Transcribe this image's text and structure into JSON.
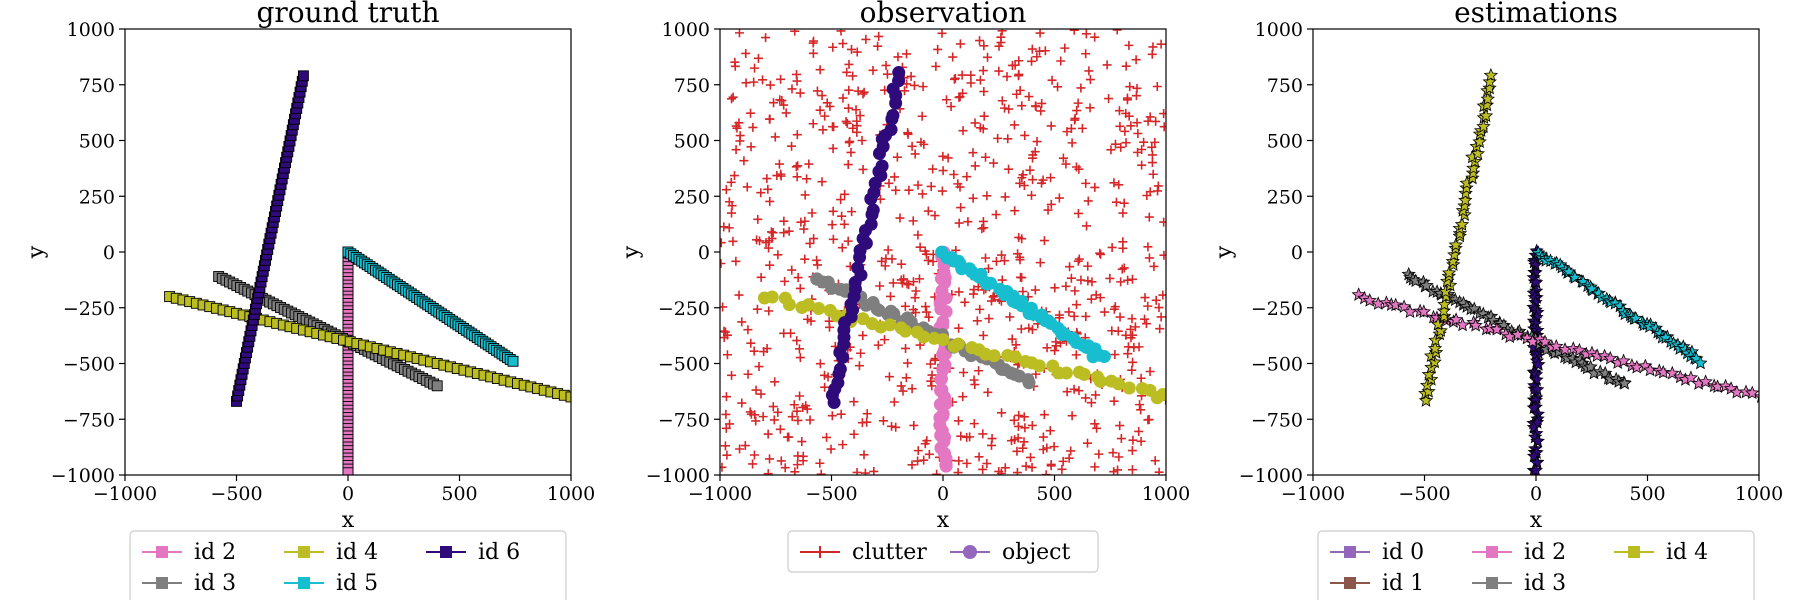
{
  "chart_data": [
    {
      "type": "line",
      "title": "ground truth",
      "xlabel": "x",
      "ylabel": "y",
      "xlim": [
        -1000,
        1000
      ],
      "ylim": [
        -1000,
        1000
      ],
      "xticks": [
        "−1000",
        "−500",
        "0",
        "500",
        "1000"
      ],
      "yticks": [
        "−1000",
        "−750",
        "−500",
        "−250",
        "0",
        "250",
        "500",
        "750",
        "1000"
      ],
      "legend": {
        "placement": "bottom",
        "columns": 3,
        "entries": [
          {
            "label": "id 2",
            "color": "#e377c2",
            "marker": "square"
          },
          {
            "label": "id 3",
            "color": "#7f7f7f",
            "marker": "square"
          },
          {
            "label": "id 4",
            "color": "#bcbd22",
            "marker": "square"
          },
          {
            "label": "id 5",
            "color": "#17becf",
            "marker": "square"
          },
          {
            "label": "id 6",
            "color": "#2e0a7a",
            "marker": "square"
          }
        ]
      },
      "series": [
        {
          "name": "id 2",
          "color": "#e377c2",
          "marker": "square",
          "x": [
            0,
            0
          ],
          "y": [
            0,
            -990
          ]
        },
        {
          "name": "id 3",
          "color": "#7f7f7f",
          "marker": "square",
          "x": [
            -580,
            400
          ],
          "y": [
            -110,
            -600
          ]
        },
        {
          "name": "id 4",
          "color": "#bcbd22",
          "marker": "square",
          "x": [
            -800,
            1000
          ],
          "y": [
            -200,
            -650
          ]
        },
        {
          "name": "id 5",
          "color": "#17becf",
          "marker": "square",
          "x": [
            0,
            740
          ],
          "y": [
            0,
            -490
          ]
        },
        {
          "name": "id 6",
          "color": "#2e0a7a",
          "marker": "square",
          "x": [
            -500,
            -200
          ],
          "y": [
            -670,
            790
          ]
        }
      ]
    },
    {
      "type": "scatter",
      "title": "observation",
      "xlabel": "x",
      "ylabel": "y",
      "xlim": [
        -1000,
        1000
      ],
      "ylim": [
        -1000,
        1000
      ],
      "xticks": [
        "−1000",
        "−500",
        "0",
        "500",
        "1000"
      ],
      "yticks": [
        "−1000",
        "−750",
        "−500",
        "−250",
        "0",
        "250",
        "500",
        "750",
        "1000"
      ],
      "legend": {
        "placement": "bottom",
        "columns": 2,
        "entries": [
          {
            "label": "clutter",
            "color": "#d62728",
            "marker": "plus"
          },
          {
            "label": "object",
            "color": "#9467bd",
            "marker": "circle"
          }
        ]
      },
      "clutter": {
        "color": "#d62728",
        "count": 800,
        "xrange": [
          -1000,
          1000
        ],
        "yrange": [
          -1000,
          1000
        ]
      },
      "objects": [
        {
          "color": "#e377c2",
          "x": [
            0,
            0
          ],
          "y": [
            0,
            -970
          ]
        },
        {
          "color": "#7f7f7f",
          "x": [
            -580,
            400
          ],
          "y": [
            -110,
            -580
          ]
        },
        {
          "color": "#bcbd22",
          "x": [
            -800,
            1000
          ],
          "y": [
            -200,
            -650
          ]
        },
        {
          "color": "#17becf",
          "x": [
            0,
            720
          ],
          "y": [
            0,
            -480
          ]
        },
        {
          "color": "#2e0a7a",
          "x": [
            -500,
            -200
          ],
          "y": [
            -680,
            790
          ]
        }
      ]
    },
    {
      "type": "line",
      "title": "estimations",
      "xlabel": "x",
      "ylabel": "y",
      "xlim": [
        -1000,
        1000
      ],
      "ylim": [
        -1000,
        1000
      ],
      "xticks": [
        "−1000",
        "−500",
        "0",
        "500",
        "1000"
      ],
      "yticks": [
        "−1000",
        "−750",
        "−500",
        "−250",
        "0",
        "250",
        "500",
        "750",
        "1000"
      ],
      "legend": {
        "placement": "bottom",
        "columns": 3,
        "entries": [
          {
            "label": "id 0",
            "color": "#9467bd",
            "marker": "square"
          },
          {
            "label": "id 1",
            "color": "#8c564b",
            "marker": "square"
          },
          {
            "label": "id 2",
            "color": "#e377c2",
            "marker": "square"
          },
          {
            "label": "id 3",
            "color": "#7f7f7f",
            "marker": "square"
          },
          {
            "label": "id 4",
            "color": "#bcbd22",
            "marker": "square"
          }
        ]
      },
      "series": [
        {
          "color": "#2e0a7a",
          "marker": "star",
          "x": [
            0,
            0
          ],
          "y": [
            0,
            -990
          ]
        },
        {
          "color": "#7f7f7f",
          "marker": "star",
          "x": [
            -580,
            400
          ],
          "y": [
            -110,
            -600
          ]
        },
        {
          "color": "#e377c2",
          "marker": "star",
          "x": [
            -800,
            1000
          ],
          "y": [
            -200,
            -650
          ]
        },
        {
          "color": "#17becf",
          "marker": "star",
          "x": [
            0,
            740
          ],
          "y": [
            0,
            -490
          ]
        },
        {
          "color": "#bcbd22",
          "marker": "star",
          "x": [
            -500,
            -200
          ],
          "y": [
            -670,
            790
          ]
        }
      ]
    }
  ]
}
